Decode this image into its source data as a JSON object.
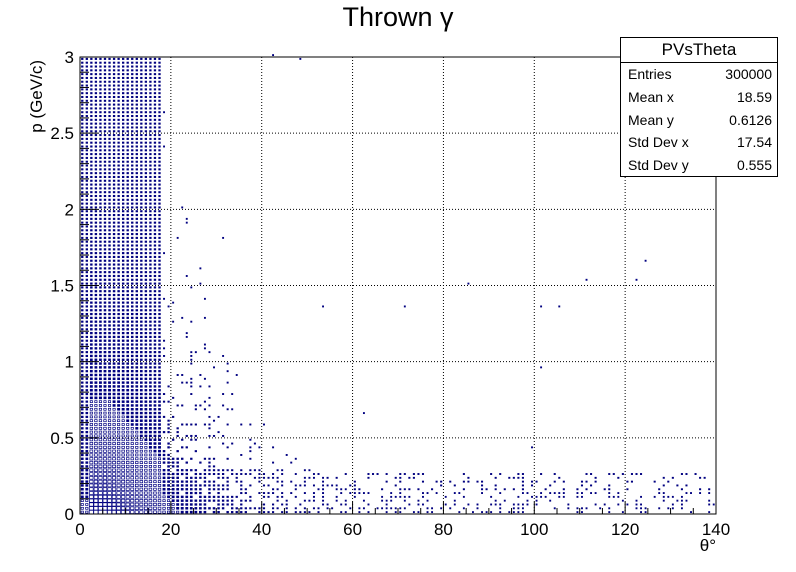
{
  "chart_data": {
    "type": "heatmap",
    "title": "Thrown γ",
    "xlabel": "θ°",
    "ylabel": "p (GeV/c)",
    "xlim": [
      0,
      140
    ],
    "ylim": [
      0,
      3
    ],
    "x_ticks": [
      "0",
      "20",
      "40",
      "60",
      "80",
      "100",
      "120",
      "140"
    ],
    "y_ticks": [
      "0",
      "0.5",
      "1",
      "1.5",
      "2",
      "2.5",
      "3"
    ],
    "grid": true,
    "marker_color": "#000080",
    "bin_width_x": 1,
    "bin_width_y": 0.025,
    "density_model": {
      "description": "box-draw 2D histogram; density concentrated at low theta and low p",
      "peak_theta_range": [
        2,
        25
      ],
      "peak_p_range": [
        0,
        0.8
      ]
    }
  },
  "stats": {
    "name": "PVsTheta",
    "rows": [
      {
        "label": "Entries",
        "value": "300000"
      },
      {
        "label": "Mean x",
        "value": "18.59"
      },
      {
        "label": "Mean y",
        "value": "0.6126"
      },
      {
        "label": "Std Dev x",
        "value": "17.54"
      },
      {
        "label": "Std Dev y",
        "value": "0.555"
      }
    ]
  }
}
